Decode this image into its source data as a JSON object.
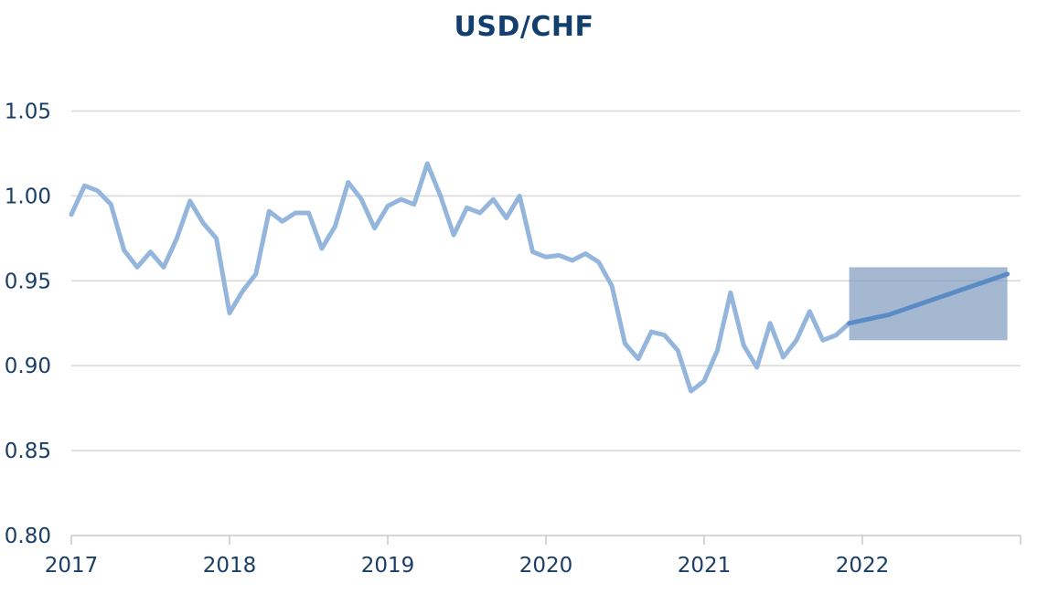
{
  "chart_data": {
    "type": "line",
    "title": "USD/CHF",
    "xlabel": "",
    "ylabel": "",
    "xlim": [
      2017.0,
      2023.0
    ],
    "ylim": [
      0.8,
      1.075
    ],
    "y_ticks": [
      "0.80",
      "0.85",
      "0.90",
      "0.95",
      "1.00",
      "1.05"
    ],
    "x_ticks": [
      "2017",
      "2018",
      "2019",
      "2020",
      "2021",
      "2022"
    ],
    "grid": "horizontal",
    "legend": "none",
    "colors": {
      "history": "#95b6dc",
      "forecast": "#5a8bc4",
      "band": "#7e9bbd",
      "grid": "#d8d8d8",
      "text": "#1a3e66",
      "title": "#133f6e"
    },
    "series": [
      {
        "x": [
          "2017-01",
          "2017-02",
          "2017-03",
          "2017-04",
          "2017-05",
          "2017-06",
          "2017-07",
          "2017-08",
          "2017-09",
          "2017-10",
          "2017-11",
          "2017-12",
          "2018-01",
          "2018-02",
          "2018-03",
          "2018-04",
          "2018-05",
          "2018-06",
          "2018-07",
          "2018-08",
          "2018-09",
          "2018-10",
          "2018-11",
          "2018-12",
          "2019-01",
          "2019-02",
          "2019-03",
          "2019-04",
          "2019-05",
          "2019-06",
          "2019-07",
          "2019-08",
          "2019-09",
          "2019-10",
          "2019-11",
          "2019-12",
          "2020-01",
          "2020-02",
          "2020-03",
          "2020-04",
          "2020-05",
          "2020-06",
          "2020-07",
          "2020-08",
          "2020-09",
          "2020-10",
          "2020-11",
          "2020-12",
          "2021-01",
          "2021-02",
          "2021-03",
          "2021-04",
          "2021-05",
          "2021-06",
          "2021-07",
          "2021-08",
          "2021-09",
          "2021-10",
          "2021-11",
          "2021-12"
        ],
        "values": [
          0.989,
          1.006,
          1.003,
          0.995,
          0.968,
          0.958,
          0.967,
          0.958,
          0.975,
          0.997,
          0.984,
          0.975,
          0.931,
          0.944,
          0.954,
          0.991,
          0.985,
          0.99,
          0.99,
          0.969,
          0.982,
          1.008,
          0.998,
          0.981,
          0.994,
          0.998,
          0.995,
          1.019,
          1.0,
          0.977,
          0.993,
          0.99,
          0.998,
          0.987,
          1.0,
          0.967,
          0.964,
          0.965,
          0.962,
          0.966,
          0.961,
          0.947,
          0.913,
          0.904,
          0.92,
          0.918,
          0.909,
          0.885,
          0.891,
          0.909,
          0.943,
          0.912,
          0.899,
          0.925,
          0.905,
          0.915,
          0.932,
          0.915,
          0.918,
          0.925
        ]
      },
      {
        "x": [
          "2021-12",
          "2022-03",
          "2022-12"
        ],
        "values": [
          0.925,
          0.93,
          0.954
        ]
      }
    ],
    "band": {
      "x": [
        "2021-12",
        "2022-12"
      ],
      "y": [
        0.915,
        0.958
      ]
    }
  }
}
